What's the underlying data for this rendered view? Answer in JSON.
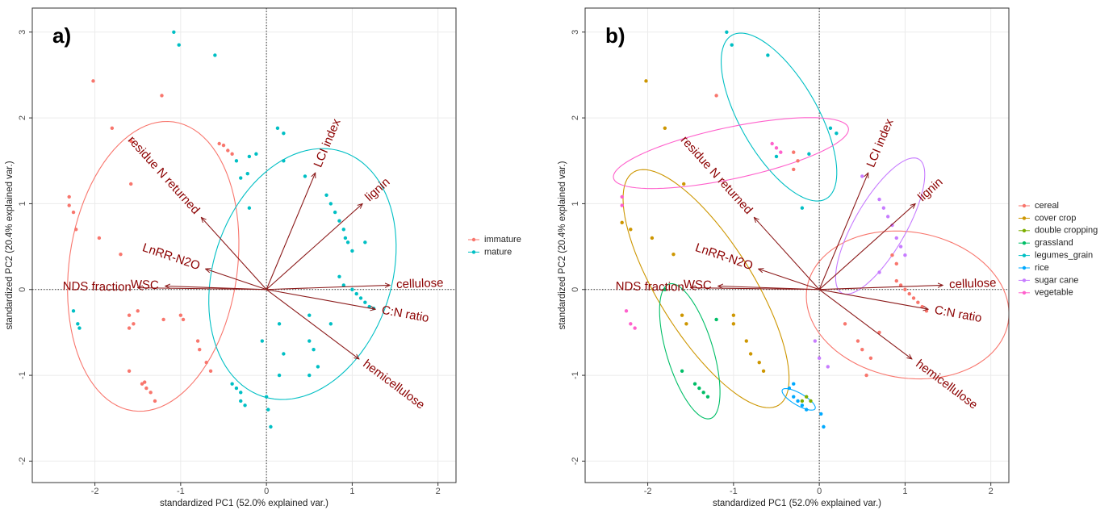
{
  "chart_data": [
    {
      "type": "biplot",
      "panel_label": "a)",
      "xlabel": "standardized PC1 (52.0% explained var.)",
      "ylabel": "standardized PC2 (20.4% explained var.)",
      "xlim": [
        -2.73,
        2.21
      ],
      "ylim": [
        -2.25,
        3.28
      ],
      "xticks": [
        -2,
        -1,
        0,
        1,
        2
      ],
      "yticks": [
        -2,
        -1,
        0,
        1,
        2,
        3
      ],
      "grid": true,
      "zero_lines": true,
      "legend": "right",
      "loading_color": "#8b1a1a",
      "series": [
        {
          "name": "immature",
          "color": "#f8766d",
          "x": [
            -2.02,
            -1.22,
            -1.8,
            -1.58,
            -1.58,
            -2.3,
            -2.3,
            -2.25,
            -2.22,
            -1.95,
            -1.7,
            -0.55,
            -0.5,
            -0.45,
            -0.4,
            -1.6,
            -1.55,
            -1.6,
            -1.5,
            -1.2,
            -1.0,
            -0.97,
            -0.8,
            -0.78,
            -0.7,
            -0.65,
            -1.6,
            -1.45,
            -1.4,
            -1.35,
            -1.3,
            -1.42
          ],
          "y": [
            2.43,
            2.26,
            1.88,
            1.73,
            1.23,
            1.08,
            0.98,
            0.9,
            0.7,
            0.6,
            0.41,
            1.7,
            1.68,
            1.62,
            1.58,
            -0.3,
            -0.4,
            -0.45,
            -0.25,
            -0.35,
            -0.3,
            -0.35,
            -0.6,
            -0.7,
            -0.85,
            -0.95,
            -0.95,
            -1.1,
            -1.15,
            -1.2,
            -1.3,
            -1.08
          ],
          "ellipse": {
            "cx": -1.32,
            "cy": 0.27,
            "rx": 0.98,
            "ry": 1.7,
            "angle": -8
          }
        },
        {
          "name": "mature",
          "color": "#00bfc4",
          "x": [
            -1.08,
            -1.02,
            -0.6,
            -0.35,
            -0.2,
            -0.12,
            -0.22,
            -0.3,
            0.13,
            0.2,
            0.2,
            0.45,
            -0.2,
            0.7,
            0.75,
            0.8,
            0.85,
            0.9,
            0.95,
            0.92,
            1.0,
            1.15,
            0.85,
            0.9,
            1.0,
            1.05,
            1.1,
            1.15,
            1.2,
            1.25,
            -2.25,
            -2.2,
            -2.18,
            0.15,
            0.2,
            0.5,
            0.55,
            0.5,
            0.6,
            0.5,
            -0.05,
            -0.4,
            -0.35,
            -0.3,
            -0.3,
            -0.25,
            0.0,
            0.02,
            0.05,
            0.15,
            0.75
          ],
          "y": [
            3.0,
            2.85,
            2.73,
            1.5,
            1.55,
            1.58,
            1.35,
            1.3,
            1.88,
            1.82,
            1.5,
            1.32,
            0.95,
            1.1,
            1.0,
            0.9,
            0.8,
            0.7,
            0.55,
            0.6,
            0.45,
            0.55,
            0.15,
            0.05,
            0.0,
            -0.05,
            -0.1,
            -0.15,
            -0.2,
            -0.22,
            -0.25,
            -0.4,
            -0.45,
            -0.4,
            -0.75,
            -0.6,
            -0.7,
            -1.0,
            -0.9,
            -0.3,
            -0.6,
            -1.1,
            -1.15,
            -1.2,
            -1.3,
            -1.35,
            -1.25,
            -1.4,
            -1.6,
            -1.0,
            -0.4
          ],
          "ellipse": {
            "cx": 0.42,
            "cy": 0.18,
            "rx": 1.04,
            "ry": 1.5,
            "angle": -18
          }
        }
      ],
      "loadings": [
        {
          "name": "LCI index",
          "x": 0.57,
          "y": 1.36
        },
        {
          "name": "lignin",
          "x": 1.12,
          "y": 1.0
        },
        {
          "name": "cellulose",
          "x": 1.44,
          "y": 0.05
        },
        {
          "name": "C:N ratio",
          "x": 1.27,
          "y": -0.23
        },
        {
          "name": "hemicellulose",
          "x": 1.08,
          "y": -0.81
        },
        {
          "name": "residue N returned",
          "x": -0.76,
          "y": 0.84
        },
        {
          "name": "LnRR-N2O",
          "x": -0.71,
          "y": 0.24
        },
        {
          "name": "WSC",
          "x": -1.18,
          "y": 0.04
        },
        {
          "name": "NDS fraction",
          "x": -1.5,
          "y": 0.02
        }
      ]
    },
    {
      "type": "biplot",
      "panel_label": "b)",
      "xlabel": "standardized PC1 (52.0% explained var.)",
      "ylabel": "standardized PC2 (20.4% explained var.)",
      "xlim": [
        -2.73,
        2.21
      ],
      "ylim": [
        -2.25,
        3.28
      ],
      "xticks": [
        -2,
        -1,
        0,
        1,
        2
      ],
      "yticks": [
        -2,
        -1,
        0,
        1,
        2,
        3
      ],
      "grid": true,
      "zero_lines": true,
      "legend": "right",
      "loading_color": "#8b1a1a",
      "series": [
        {
          "name": "cereal",
          "color": "#f8766d",
          "x": [
            -1.2,
            -0.3,
            -0.25,
            -0.3,
            0.85,
            0.9,
            0.9,
            0.95,
            1.0,
            1.05,
            1.1,
            1.15,
            1.2,
            0.3,
            0.45,
            0.5,
            0.6,
            0.7,
            1.25,
            0.55
          ],
          "y": [
            2.26,
            1.6,
            1.5,
            1.4,
            0.4,
            0.3,
            0.1,
            0.05,
            0.0,
            -0.05,
            -0.1,
            -0.15,
            -0.2,
            -0.4,
            -0.6,
            -0.7,
            -0.8,
            -0.5,
            -0.25,
            -1.0
          ],
          "ellipse": {
            "cx": 1.03,
            "cy": -0.18,
            "rx": 1.19,
            "ry": 0.85,
            "angle": -10
          }
        },
        {
          "name": "cover crop",
          "color": "#cd9600",
          "x": [
            -2.02,
            -1.8,
            -2.3,
            -2.2,
            -1.95,
            -1.7,
            -1.6,
            -1.55,
            -1.0,
            -1.0,
            -0.85,
            -0.8,
            -0.7,
            -0.65,
            -1.58
          ],
          "y": [
            2.43,
            1.88,
            0.78,
            0.7,
            0.6,
            0.41,
            -0.3,
            -0.4,
            -0.3,
            -0.4,
            -0.6,
            -0.75,
            -0.85,
            -0.95,
            1.23
          ],
          "ellipse": {
            "cx": -1.32,
            "cy": 0.01,
            "rx": 1.6,
            "ry": 0.55,
            "angle": -58
          }
        },
        {
          "name": "double cropping",
          "color": "#7cae00",
          "x": [
            -0.2,
            -0.15,
            -0.1
          ],
          "y": [
            -1.3,
            -1.25,
            -1.3
          ]
        },
        {
          "name": "grassland",
          "color": "#00be67",
          "x": [
            -1.6,
            -1.45,
            -1.4,
            -1.35,
            -1.3,
            -1.2,
            -1.8
          ],
          "y": [
            -0.95,
            -1.1,
            -1.15,
            -1.2,
            -1.25,
            -0.35,
            0.0
          ],
          "ellipse": {
            "cx": -1.51,
            "cy": -0.72,
            "rx": 0.82,
            "ry": 0.27,
            "angle": -73
          }
        },
        {
          "name": "legumes_grain",
          "color": "#00bfc4",
          "x": [
            -1.08,
            -1.02,
            -0.6,
            -0.5,
            0.13,
            0.2,
            -0.2,
            -0.12
          ],
          "y": [
            3.0,
            2.85,
            2.73,
            1.55,
            1.88,
            1.82,
            0.95,
            1.58
          ],
          "ellipse": {
            "cx": -0.47,
            "cy": 2.01,
            "rx": 1.1,
            "ry": 0.45,
            "angle": -60
          }
        },
        {
          "name": "rice",
          "color": "#00a9ff",
          "x": [
            -0.35,
            -0.3,
            -0.25,
            -0.2,
            -0.15,
            -0.3,
            0.02,
            0.05
          ],
          "y": [
            -1.15,
            -1.25,
            -1.3,
            -1.35,
            -1.4,
            -1.1,
            -1.45,
            -1.6
          ],
          "ellipse": {
            "cx": -0.24,
            "cy": -1.28,
            "rx": 0.22,
            "ry": 0.07,
            "angle": -30
          }
        },
        {
          "name": "sugar cane",
          "color": "#c77cff",
          "x": [
            0.5,
            0.7,
            0.75,
            0.8,
            0.85,
            0.9,
            0.95,
            1.0,
            0.7,
            -0.05,
            0.1,
            0.0
          ],
          "y": [
            1.32,
            1.05,
            0.95,
            0.85,
            0.75,
            0.6,
            0.5,
            0.4,
            0.2,
            -0.6,
            -0.9,
            -0.8
          ],
          "ellipse": {
            "cx": 0.71,
            "cy": 0.74,
            "rx": 0.9,
            "ry": 0.3,
            "angle": 60
          }
        },
        {
          "name": "vegetable",
          "color": "#ff61cc",
          "x": [
            -2.3,
            -2.3,
            -0.55,
            -0.5,
            -0.45,
            -2.25,
            -2.2,
            -2.15
          ],
          "y": [
            1.08,
            0.98,
            1.7,
            1.65,
            1.6,
            -0.25,
            -0.4,
            -0.45
          ],
          "ellipse": {
            "cx": -1.03,
            "cy": 1.59,
            "rx": 1.4,
            "ry": 0.3,
            "angle": 12
          }
        }
      ],
      "loadings": [
        {
          "name": "LCI index",
          "x": 0.57,
          "y": 1.36
        },
        {
          "name": "lignin",
          "x": 1.12,
          "y": 1.0
        },
        {
          "name": "cellulose",
          "x": 1.44,
          "y": 0.05
        },
        {
          "name": "C:N ratio",
          "x": 1.27,
          "y": -0.23
        },
        {
          "name": "hemicellulose",
          "x": 1.08,
          "y": -0.81
        },
        {
          "name": "residue N returned",
          "x": -0.76,
          "y": 0.84
        },
        {
          "name": "LnRR-N2O",
          "x": -0.71,
          "y": 0.24
        },
        {
          "name": "WSC",
          "x": -1.18,
          "y": 0.04
        },
        {
          "name": "NDS fraction",
          "x": -1.5,
          "y": 0.02
        }
      ]
    }
  ]
}
